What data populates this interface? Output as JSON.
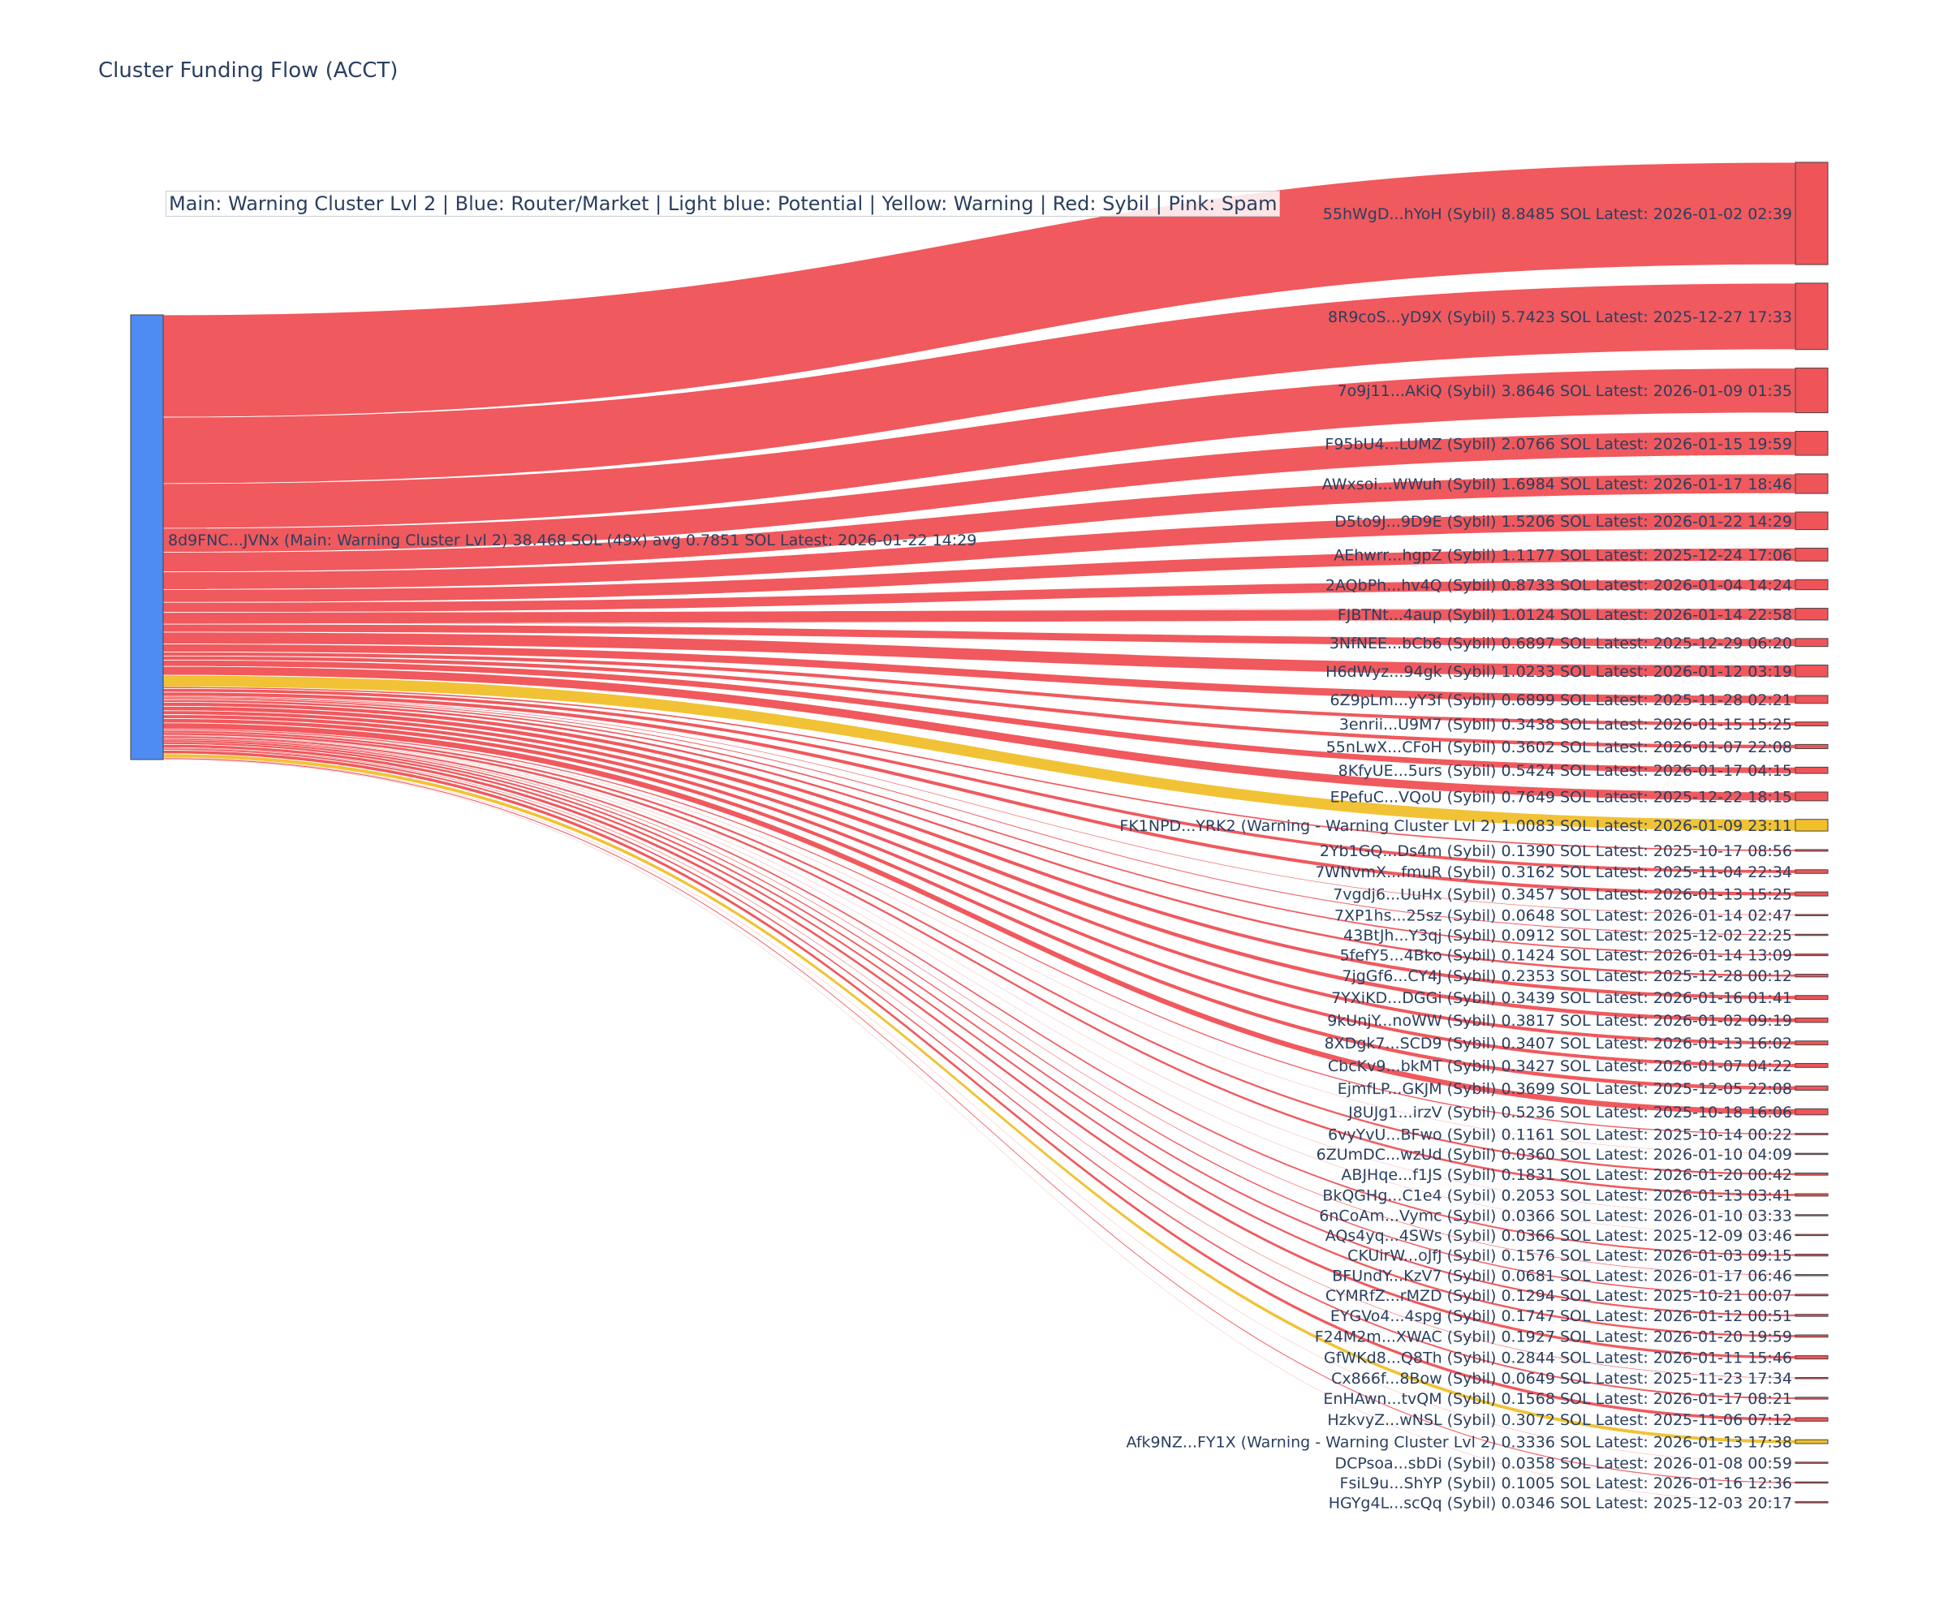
{
  "chart_data": {
    "type": "sankey",
    "title": "Cluster Funding Flow (ACCT)",
    "legend_note": "Main: Warning Cluster Lvl 2  |  Blue: Router/Market | Light blue: Potential | Yellow: Warning | Red: Sybil | Pink: Spam",
    "colors": {
      "main": "#4e8cf4",
      "sybil": "#ef5458",
      "warning": "#f0bf2a"
    },
    "source": {
      "label": "8d9FNC...JVNx (Main: Warning Cluster Lvl 2) 38.468 SOL (49x) avg 0.7851 SOL Latest: 2026-01-22 14:29",
      "category": "main",
      "total": 38.468
    },
    "targets": [
      {
        "label": "55hWgD...hYoH (Sybil) 8.8485 SOL Latest: 2026-01-02 02:39",
        "value": 8.8485,
        "category": "sybil"
      },
      {
        "label": "8R9coS...yD9X (Sybil) 5.7423 SOL Latest: 2025-12-27 17:33",
        "value": 5.7423,
        "category": "sybil"
      },
      {
        "label": "7o9j11...AKiQ (Sybil) 3.8646 SOL Latest: 2026-01-09 01:35",
        "value": 3.8646,
        "category": "sybil"
      },
      {
        "label": "F95bU4...LUMZ (Sybil) 2.0766 SOL Latest: 2026-01-15 19:59",
        "value": 2.0766,
        "category": "sybil"
      },
      {
        "label": "AWxsoi...WWuh (Sybil) 1.6984 SOL Latest: 2026-01-17 18:46",
        "value": 1.6984,
        "category": "sybil"
      },
      {
        "label": "D5to9J...9D9E (Sybil) 1.5206 SOL Latest: 2026-01-22 14:29",
        "value": 1.5206,
        "category": "sybil"
      },
      {
        "label": "AEhwrr...hgpZ (Sybil) 1.1177 SOL Latest: 2025-12-24 17:06",
        "value": 1.1177,
        "category": "sybil"
      },
      {
        "label": "2AQbPh...hv4Q (Sybil) 0.8733 SOL Latest: 2026-01-04 14:24",
        "value": 0.8733,
        "category": "sybil"
      },
      {
        "label": "FJBTNt...4aup (Sybil) 1.0124 SOL Latest: 2026-01-14 22:58",
        "value": 1.0124,
        "category": "sybil"
      },
      {
        "label": "3NfNEE...bCb6 (Sybil) 0.6897 SOL Latest: 2025-12-29 06:20",
        "value": 0.6897,
        "category": "sybil"
      },
      {
        "label": "H6dWyz...94gk (Sybil) 1.0233 SOL Latest: 2026-01-12 03:19",
        "value": 1.0233,
        "category": "sybil"
      },
      {
        "label": "6Z9pLm...yY3f (Sybil) 0.6899 SOL Latest: 2025-11-28 02:21",
        "value": 0.6899,
        "category": "sybil"
      },
      {
        "label": "3enrii...U9M7 (Sybil) 0.3438 SOL Latest: 2026-01-15 15:25",
        "value": 0.3438,
        "category": "sybil"
      },
      {
        "label": "55nLwX...CFoH (Sybil) 0.3602 SOL Latest: 2026-01-07 22:08",
        "value": 0.3602,
        "category": "sybil"
      },
      {
        "label": "8KfyUE...5urs (Sybil) 0.5424 SOL Latest: 2026-01-17 04:15",
        "value": 0.5424,
        "category": "sybil"
      },
      {
        "label": "EPefuC...VQoU (Sybil) 0.7649 SOL Latest: 2025-12-22 18:15",
        "value": 0.7649,
        "category": "sybil"
      },
      {
        "label": "FK1NPD...YRK2 (Warning - Warning Cluster Lvl 2) 1.0083 SOL Latest: 2026-01-09 23:11",
        "value": 1.0083,
        "category": "warning"
      },
      {
        "label": "2Yb1GQ...Ds4m (Sybil) 0.1390 SOL Latest: 2025-10-17 08:56",
        "value": 0.139,
        "category": "sybil"
      },
      {
        "label": "7WNvmX...fmuR (Sybil) 0.3162 SOL Latest: 2025-11-04 22:34",
        "value": 0.3162,
        "category": "sybil"
      },
      {
        "label": "7vgdj6...UuHx (Sybil) 0.3457 SOL Latest: 2026-01-13 15:25",
        "value": 0.3457,
        "category": "sybil"
      },
      {
        "label": "7XP1hs...25sz (Sybil) 0.0648 SOL Latest: 2026-01-14 02:47",
        "value": 0.0648,
        "category": "sybil"
      },
      {
        "label": "43BtJh...Y3qj (Sybil) 0.0912 SOL Latest: 2025-12-02 22:25",
        "value": 0.0912,
        "category": "sybil"
      },
      {
        "label": "5fefY5...4Bko (Sybil) 0.1424 SOL Latest: 2026-01-14 13:09",
        "value": 0.1424,
        "category": "sybil"
      },
      {
        "label": "7jgGf6...CY4J (Sybil) 0.2353 SOL Latest: 2025-12-28 00:12",
        "value": 0.2353,
        "category": "sybil"
      },
      {
        "label": "7YXiKD...DGGi (Sybil) 0.3439 SOL Latest: 2026-01-16 01:41",
        "value": 0.3439,
        "category": "sybil"
      },
      {
        "label": "9kUnjY...noWW (Sybil) 0.3817 SOL Latest: 2026-01-02 09:19",
        "value": 0.3817,
        "category": "sybil"
      },
      {
        "label": "8XDgk7...SCD9 (Sybil) 0.3407 SOL Latest: 2026-01-13 16:02",
        "value": 0.3407,
        "category": "sybil"
      },
      {
        "label": "CbcKv9...bkMT (Sybil) 0.3427 SOL Latest: 2026-01-07 04:22",
        "value": 0.3427,
        "category": "sybil"
      },
      {
        "label": "EjmfLP...GKJM (Sybil) 0.3699 SOL Latest: 2025-12-05 22:08",
        "value": 0.3699,
        "category": "sybil"
      },
      {
        "label": "J8UJg1...irzV (Sybil) 0.5236 SOL Latest: 2025-10-18 16:06",
        "value": 0.5236,
        "category": "sybil"
      },
      {
        "label": "6vyYvU...BFwo (Sybil) 0.1161 SOL Latest: 2025-10-14 00:22",
        "value": 0.1161,
        "category": "sybil"
      },
      {
        "label": "6ZUmDC...wzUd (Sybil) 0.0360 SOL Latest: 2026-01-10 04:09",
        "value": 0.036,
        "category": "sybil"
      },
      {
        "label": "ABJHqe...f1JS (Sybil) 0.1831 SOL Latest: 2026-01-20 00:42",
        "value": 0.1831,
        "category": "sybil"
      },
      {
        "label": "BkQGHg...C1e4 (Sybil) 0.2053 SOL Latest: 2026-01-13 03:41",
        "value": 0.2053,
        "category": "sybil"
      },
      {
        "label": "6nCoAm...Vymc (Sybil) 0.0366 SOL Latest: 2026-01-10 03:33",
        "value": 0.0366,
        "category": "sybil"
      },
      {
        "label": "AQs4yq...4SWs (Sybil) 0.0366 SOL Latest: 2025-12-09 03:46",
        "value": 0.0366,
        "category": "sybil"
      },
      {
        "label": "CKUirW...oJfJ (Sybil) 0.1576 SOL Latest: 2026-01-03 09:15",
        "value": 0.1576,
        "category": "sybil"
      },
      {
        "label": "BFUndY...KzV7 (Sybil) 0.0681 SOL Latest: 2026-01-17 06:46",
        "value": 0.0681,
        "category": "sybil"
      },
      {
        "label": "CYMRfZ...rMZD (Sybil) 0.1294 SOL Latest: 2025-10-21 00:07",
        "value": 0.1294,
        "category": "sybil"
      },
      {
        "label": "EYGVo4...4spg (Sybil) 0.1747 SOL Latest: 2026-01-12 00:51",
        "value": 0.1747,
        "category": "sybil"
      },
      {
        "label": "F24M2m...XWAC (Sybil) 0.1927 SOL Latest: 2026-01-20 19:59",
        "value": 0.1927,
        "category": "sybil"
      },
      {
        "label": "GfWKd8...Q8Th (Sybil) 0.2844 SOL Latest: 2026-01-11 15:46",
        "value": 0.2844,
        "category": "sybil"
      },
      {
        "label": "Cx866f...8Bow (Sybil) 0.0649 SOL Latest: 2025-11-23 17:34",
        "value": 0.0649,
        "category": "sybil"
      },
      {
        "label": "EnHAwn...tvQM (Sybil) 0.1568 SOL Latest: 2026-01-17 08:21",
        "value": 0.1568,
        "category": "sybil"
      },
      {
        "label": "HzkvyZ...wNSL (Sybil) 0.3072 SOL Latest: 2025-11-06 07:12",
        "value": 0.3072,
        "category": "sybil"
      },
      {
        "label": "Afk9NZ...FY1X (Warning - Warning Cluster Lvl 2) 0.3336 SOL Latest: 2026-01-13 17:38",
        "value": 0.3336,
        "category": "warning"
      },
      {
        "label": "DCPsoa...sbDi (Sybil) 0.0358 SOL Latest: 2026-01-08 00:59",
        "value": 0.0358,
        "category": "sybil"
      },
      {
        "label": "FsiL9u...ShYP (Sybil) 0.1005 SOL Latest: 2026-01-16 12:36",
        "value": 0.1005,
        "category": "sybil"
      },
      {
        "label": "HGYg4L...scQq (Sybil) 0.0346 SOL Latest: 2025-12-03 20:17",
        "value": 0.0346,
        "category": "sybil"
      }
    ]
  }
}
